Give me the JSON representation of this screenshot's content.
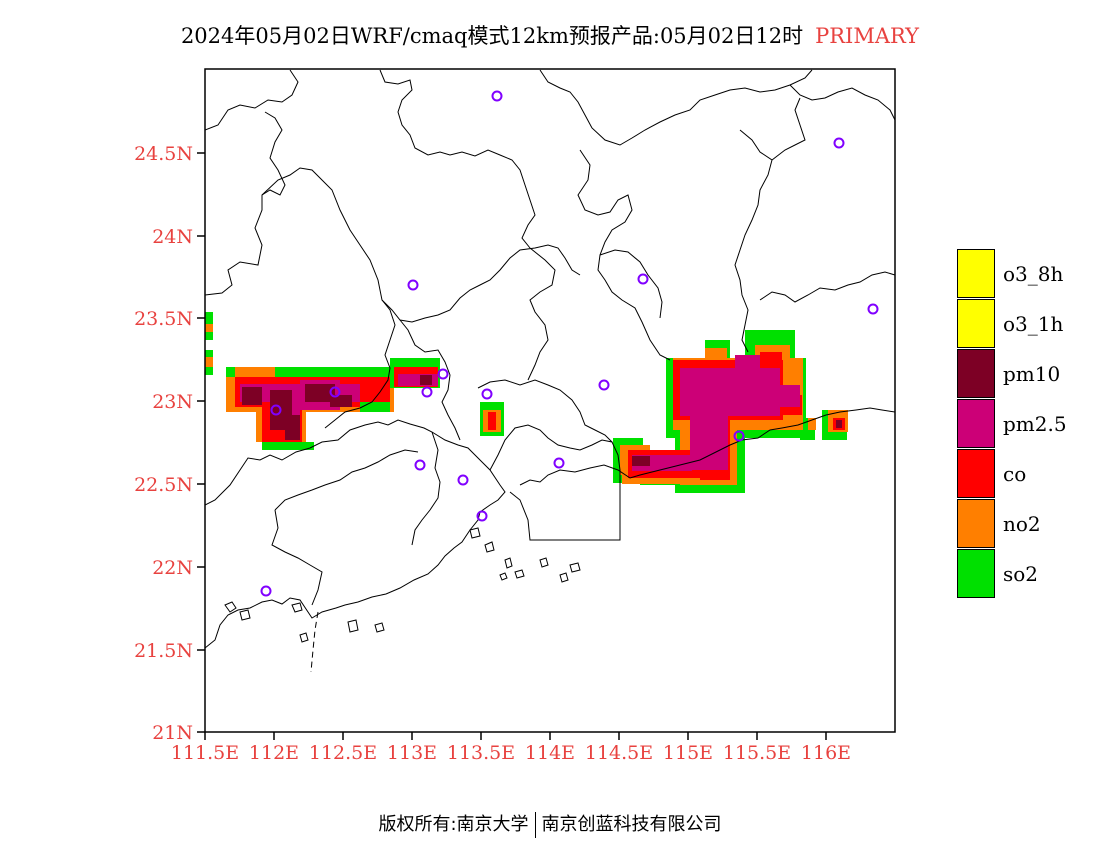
{
  "title": {
    "main": "2024年05月02日WRF/cmaq模式12km预报产品:05月02日12时",
    "highlight": "PRIMARY"
  },
  "axes": {
    "x_ticks": [
      "111.5E",
      "112E",
      "112.5E",
      "113E",
      "113.5E",
      "114E",
      "114.5E",
      "115E",
      "115.5E",
      "116E"
    ],
    "y_ticks": [
      "24.5N",
      "24N",
      "23.5N",
      "23N",
      "22.5N",
      "22N",
      "21.5N",
      "21N"
    ]
  },
  "legend": [
    {
      "label": "o3_8h",
      "color": "#ffff00"
    },
    {
      "label": "o3_1h",
      "color": "#ffff00"
    },
    {
      "label": "pm10",
      "color": "#7d0025"
    },
    {
      "label": "pm2.5",
      "color": "#cc0077"
    },
    {
      "label": "co",
      "color": "#ff0000"
    },
    {
      "label": "no2",
      "color": "#ff7f00"
    },
    {
      "label": "so2",
      "color": "#00e000"
    }
  ],
  "footer": {
    "left": "版权所有:南京大学",
    "right": "南京创蓝科技有限公司"
  }
}
